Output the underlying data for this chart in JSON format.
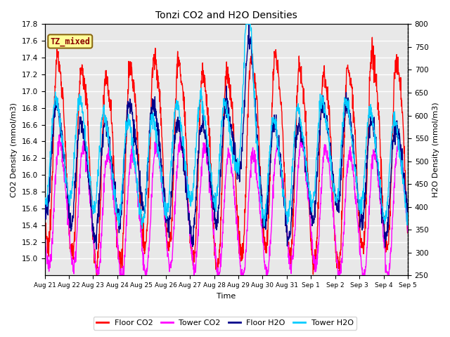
{
  "title": "Tonzi CO2 and H2O Densities",
  "xlabel": "Time",
  "ylabel_left": "CO2 Density (mmol/m3)",
  "ylabel_right": "H2O Density (mmol/m3)",
  "annotation_text": "TZ_mixed",
  "annotation_color": "#8B0000",
  "annotation_bg": "#FFFF99",
  "annotation_border": "#8B6914",
  "ylim_left": [
    14.8,
    17.8
  ],
  "ylim_right": [
    250,
    800
  ],
  "yticks_left": [
    15.0,
    15.2,
    15.4,
    15.6,
    15.8,
    16.0,
    16.2,
    16.4,
    16.6,
    16.8,
    17.0,
    17.2,
    17.4,
    17.6,
    17.8
  ],
  "yticks_right": [
    250,
    300,
    350,
    400,
    450,
    500,
    550,
    600,
    650,
    700,
    750,
    800
  ],
  "colors": {
    "floor_co2": "#FF0000",
    "tower_co2": "#FF00FF",
    "floor_h2o": "#00008B",
    "tower_h2o": "#00CCFF"
  },
  "legend_labels": [
    "Floor CO2",
    "Tower CO2",
    "Floor H2O",
    "Tower H2O"
  ],
  "plot_bg_light": "#E8E8E8",
  "plot_bg_dark": "#D0D0D0",
  "grid_color": "#FFFFFF",
  "fig_bg": "#FFFFFF",
  "linewidth": 1.0,
  "tick_labels": [
    "Aug 21",
    "Aug 22",
    "Aug 23",
    "Aug 24",
    "Aug 25",
    "Aug 26",
    "Aug 27",
    "Aug 28",
    "Aug 29",
    "Aug 30",
    "Aug 31",
    "Sep 1",
    "Sep 2",
    "Sep 3",
    "Sep 4",
    "Sep 5"
  ]
}
